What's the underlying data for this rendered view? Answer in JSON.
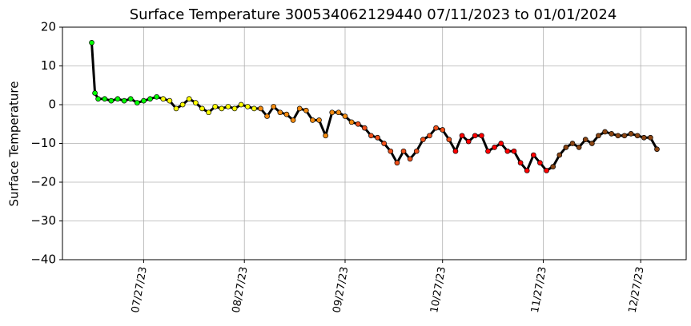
{
  "chart_data": {
    "type": "scatter",
    "title": "Surface Temperature 300534062129440  07/11/2023 to 01/01/2024",
    "y_label": "Surface Temperature",
    "xlim": [
      "07/02/23",
      "01/10/24"
    ],
    "xticks": [
      "07/27/23",
      "08/27/23",
      "09/27/23",
      "10/27/23",
      "11/27/23",
      "12/27/23"
    ],
    "ylim": [
      -40,
      20
    ],
    "yticks": [
      {
        "value": -40,
        "label": "−40"
      },
      {
        "value": -30,
        "label": "−30"
      },
      {
        "value": -20,
        "label": "−20"
      },
      {
        "value": -10,
        "label": "−10"
      },
      0,
      10,
      20
    ],
    "grid": true,
    "series": [
      {
        "color": "#00ff00",
        "x": [
          "07/11/23",
          "07/12/23",
          "07/13/23",
          "07/15/23",
          "07/17/23",
          "07/19/23",
          "07/21/23",
          "07/23/23",
          "07/25/23",
          "07/27/23",
          "07/29/23",
          "07/31/23"
        ],
        "values": [
          16,
          3,
          1.5,
          1.5,
          1,
          1.5,
          1,
          1.5,
          0.5,
          1,
          1.5,
          2
        ]
      },
      {
        "color": "#ffff00",
        "x": [
          "08/02/23",
          "08/04/23",
          "08/06/23",
          "08/08/23",
          "08/10/23",
          "08/12/23",
          "08/14/23",
          "08/16/23",
          "08/18/23",
          "08/20/23",
          "08/22/23",
          "08/24/23",
          "08/26/23",
          "08/28/23",
          "08/30/23"
        ],
        "values": [
          1.5,
          1,
          -1,
          0,
          1.5,
          0.5,
          -1,
          -2,
          -0.5,
          -1,
          -0.5,
          -1,
          0,
          -0.5,
          -1
        ]
      },
      {
        "color": "#f28a0f",
        "x": [
          "09/01/23",
          "09/03/23",
          "09/05/23",
          "09/07/23",
          "09/09/23",
          "09/11/23",
          "09/13/23",
          "09/15/23",
          "09/17/23",
          "09/19/23",
          "09/21/23",
          "09/23/23",
          "09/25/23",
          "09/27/23",
          "09/29/23"
        ],
        "values": [
          -1,
          -3,
          -0.5,
          -2,
          -2.5,
          -4,
          -1,
          -1.5,
          -4,
          -4,
          -8,
          -2,
          -2,
          -3,
          -4.5
        ]
      },
      {
        "color": "#f0501a",
        "x": [
          "10/01/23",
          "10/03/23",
          "10/05/23",
          "10/07/23",
          "10/09/23",
          "10/11/23",
          "10/13/23",
          "10/15/23",
          "10/17/23",
          "10/19/23",
          "10/21/23",
          "10/23/23",
          "10/25/23",
          "10/27/23",
          "10/29/23"
        ],
        "values": [
          -5,
          -6,
          -8,
          -8.5,
          -10,
          -12,
          -15,
          -12,
          -14,
          -12,
          -9,
          -8,
          -6,
          -6.5,
          -9
        ]
      },
      {
        "color": "#ff0000",
        "x": [
          "10/31/23",
          "11/02/23",
          "11/04/23",
          "11/06/23",
          "11/08/23",
          "11/10/23",
          "11/12/23",
          "11/14/23",
          "11/16/23",
          "11/18/23",
          "11/20/23",
          "11/22/23",
          "11/24/23",
          "11/26/23",
          "11/28/23"
        ],
        "values": [
          -12,
          -8,
          -9.5,
          -8,
          -8,
          -12,
          -11,
          -10,
          -12,
          -12,
          -15,
          -17,
          -13,
          -15,
          -17
        ]
      },
      {
        "color": "#8b4513",
        "x": [
          "11/30/23",
          "12/02/23",
          "12/04/23",
          "12/06/23",
          "12/08/23",
          "12/10/23",
          "12/12/23",
          "12/14/23",
          "12/16/23",
          "12/18/23",
          "12/20/23",
          "12/22/23",
          "12/24/23",
          "12/26/23",
          "12/28/23",
          "12/30/23",
          "01/01/24"
        ],
        "values": [
          -16,
          -13,
          -11,
          -10,
          -11,
          -9,
          -10,
          -8,
          -7,
          -7.5,
          -8,
          -8,
          -7.5,
          -8,
          -8.5,
          -8.5,
          -11.5
        ]
      }
    ]
  }
}
